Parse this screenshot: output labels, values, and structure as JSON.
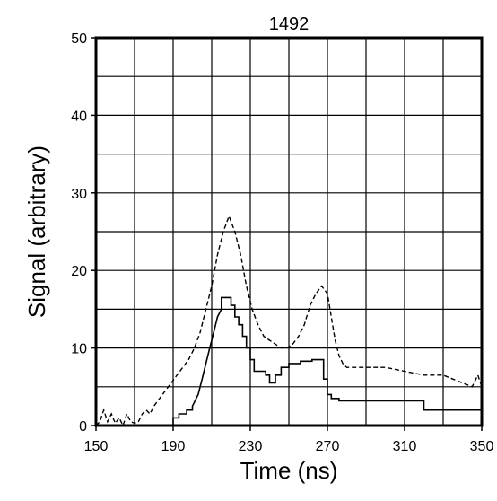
{
  "chart_data": {
    "type": "line",
    "title": "1492",
    "xlabel": "Time (ns)",
    "ylabel": "Signal (arbitrary)",
    "xlim": [
      150,
      350
    ],
    "ylim": [
      0,
      50
    ],
    "xticks": [
      150,
      190,
      230,
      270,
      310,
      350
    ],
    "yticks": [
      0,
      10,
      20,
      30,
      40,
      50
    ],
    "grid": true,
    "series": [
      {
        "style": "solid",
        "color": "#000000",
        "x": [
          150,
          190,
          190,
          193,
          193,
          197,
          197,
          200,
          200,
          203,
          205,
          207,
          209,
          211,
          213,
          215,
          215,
          220,
          220,
          222,
          222,
          224,
          224,
          226,
          226,
          228,
          228,
          230,
          230,
          232,
          232,
          238,
          238,
          240,
          240,
          243,
          243,
          246,
          246,
          250,
          250,
          256,
          256,
          262,
          262,
          268,
          268,
          270,
          270,
          272,
          272,
          276,
          276,
          320,
          320,
          350
        ],
        "y": [
          0,
          0,
          1,
          1,
          1.5,
          1.5,
          2,
          2,
          2.5,
          4,
          6,
          8,
          10,
          12,
          14,
          15,
          16.5,
          16.5,
          15.5,
          15.5,
          14,
          14,
          13,
          13,
          11.5,
          11.5,
          10,
          10,
          8.5,
          8.5,
          7,
          7,
          6.5,
          6.5,
          5.5,
          5.5,
          6.5,
          6.5,
          7.5,
          7.5,
          8,
          8,
          8.3,
          8.3,
          8.5,
          8.5,
          6,
          6,
          4,
          4,
          3.5,
          3.5,
          3.2,
          3.2,
          2,
          2
        ]
      },
      {
        "style": "dashed",
        "color": "#000000",
        "x": [
          150,
          152,
          154,
          156,
          158,
          160,
          162,
          164,
          166,
          168,
          170,
          172,
          174,
          176,
          178,
          180,
          183,
          186,
          189,
          192,
          195,
          198,
          201,
          204,
          207,
          210,
          213,
          216,
          219,
          222,
          225,
          228,
          231,
          234,
          237,
          240,
          243,
          246,
          249,
          252,
          255,
          258,
          261,
          264,
          267,
          270,
          272,
          274,
          276,
          278,
          280,
          290,
          300,
          310,
          320,
          330,
          340,
          345,
          348,
          350
        ],
        "y": [
          0,
          0.5,
          2,
          0.5,
          1.5,
          0.3,
          1,
          0,
          1.5,
          0.5,
          0.3,
          0.5,
          1.5,
          2,
          1.5,
          2.5,
          3.5,
          4.5,
          5.5,
          6.5,
          7.5,
          8.5,
          10,
          12,
          15,
          18,
          22,
          25,
          27,
          25,
          22,
          18,
          15,
          13,
          11.5,
          11,
          10.5,
          10,
          10,
          10.5,
          11.5,
          13,
          15.5,
          17,
          18,
          17,
          14,
          11,
          9,
          8,
          7.5,
          7.5,
          7.5,
          7,
          6.5,
          6.5,
          5.5,
          5,
          6.5,
          5
        ]
      }
    ]
  }
}
